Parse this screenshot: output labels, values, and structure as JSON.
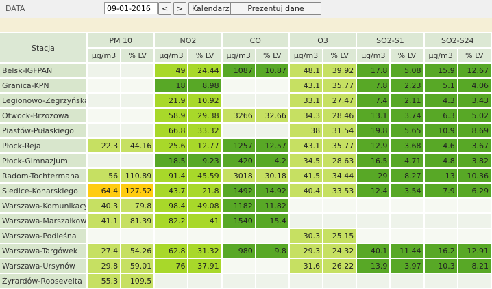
{
  "header": {
    "date_label": "DATA",
    "date": "09-01-2016",
    "prev": "<",
    "next": ">",
    "calendar": "Kalendarz",
    "present": "Prezentuj dane"
  },
  "table": {
    "station_header": "Stacja",
    "groups": [
      "PM 10",
      "NO2",
      "CO",
      "O3",
      "SO2-S1",
      "SO2-S24"
    ],
    "units": [
      "µg/m3",
      "% LV"
    ],
    "rows": [
      {
        "station": "Belsk-IGFPAN",
        "values": [
          null,
          null,
          49,
          24.44,
          1087,
          10.87,
          48.1,
          39.92,
          17.8,
          5.08,
          15.9,
          12.67
        ],
        "colors": [
          null,
          "#a8d82a",
          "#58a826",
          "#c6e062",
          "#58a826",
          "#58a826"
        ]
      },
      {
        "station": "Granica-KPN",
        "values": [
          null,
          null,
          18,
          8.98,
          null,
          null,
          43.1,
          35.77,
          7.8,
          2.23,
          5.1,
          4.06
        ],
        "colors": [
          null,
          "#58a826",
          null,
          "#c6e062",
          "#58a826",
          "#58a826"
        ]
      },
      {
        "station": "Legionowo-Zegrzyńska",
        "values": [
          null,
          null,
          21.9,
          10.92,
          null,
          null,
          33.1,
          27.47,
          7.4,
          2.11,
          4.3,
          3.43
        ],
        "colors": [
          null,
          "#a8d82a",
          null,
          "#c6e062",
          "#58a826",
          "#58a826"
        ]
      },
      {
        "station": "Otwock-Brzozowa",
        "values": [
          null,
          null,
          58.9,
          29.38,
          3266,
          32.66,
          34.3,
          28.46,
          13.1,
          3.74,
          6.3,
          5.02
        ],
        "colors": [
          null,
          "#a8d82a",
          "#c6e062",
          "#c6e062",
          "#58a826",
          "#58a826"
        ]
      },
      {
        "station": "Piastów-Pułaskiego",
        "values": [
          null,
          null,
          66.8,
          33.32,
          null,
          null,
          38,
          31.54,
          19.8,
          5.65,
          10.9,
          8.69
        ],
        "colors": [
          null,
          "#a8d82a",
          null,
          "#c6e062",
          "#58a826",
          "#58a826"
        ]
      },
      {
        "station": "Płock-Reja",
        "values": [
          22.3,
          44.16,
          25.6,
          12.77,
          1257,
          12.57,
          43.1,
          35.77,
          12.9,
          3.68,
          4.6,
          3.67
        ],
        "colors": [
          "#c6e062",
          "#a8d82a",
          "#58a826",
          "#c6e062",
          "#58a826",
          "#58a826"
        ]
      },
      {
        "station": "Płock-Gimnazjum",
        "values": [
          null,
          null,
          18.5,
          9.23,
          420,
          4.2,
          34.5,
          28.63,
          16.5,
          4.71,
          4.8,
          3.82
        ],
        "colors": [
          null,
          "#58a826",
          "#58a826",
          "#c6e062",
          "#58a826",
          "#58a826"
        ]
      },
      {
        "station": "Radom-Tochtermana",
        "values": [
          56,
          110.89,
          91.4,
          45.59,
          3018,
          30.18,
          41.5,
          34.44,
          29,
          8.27,
          13,
          10.36
        ],
        "colors": [
          "#c6e062",
          "#a8d82a",
          "#c6e062",
          "#c6e062",
          "#58a826",
          "#58a826"
        ]
      },
      {
        "station": "Siedlce-Konarskiego",
        "values": [
          64.4,
          127.52,
          43.7,
          21.8,
          1492,
          14.92,
          40.4,
          33.53,
          12.4,
          3.54,
          7.9,
          6.29
        ],
        "colors": [
          "#ffcc11",
          "#a8d82a",
          "#58a826",
          "#c6e062",
          "#58a826",
          "#58a826"
        ]
      },
      {
        "station": "Warszawa-Komunikacyjna",
        "values": [
          40.3,
          79.8,
          98.4,
          49.08,
          1182,
          11.82,
          null,
          null,
          null,
          null,
          null,
          null
        ],
        "colors": [
          "#c6e062",
          "#a8d82a",
          "#58a826",
          null,
          null,
          null
        ]
      },
      {
        "station": "Warszawa-Marszałkowska",
        "values": [
          41.1,
          81.39,
          82.2,
          41,
          1540,
          15.4,
          null,
          null,
          null,
          null,
          null,
          null
        ],
        "colors": [
          "#c6e062",
          "#a8d82a",
          "#58a826",
          null,
          null,
          null
        ]
      },
      {
        "station": "Warszawa-Podleśna",
        "values": [
          null,
          null,
          null,
          null,
          null,
          null,
          30.3,
          25.15,
          null,
          null,
          null,
          null
        ],
        "colors": [
          null,
          null,
          null,
          "#c6e062",
          null,
          null
        ]
      },
      {
        "station": "Warszawa-Targówek",
        "values": [
          27.4,
          54.26,
          62.8,
          31.32,
          980,
          9.8,
          29.3,
          24.32,
          40.1,
          11.44,
          16.2,
          12.91
        ],
        "colors": [
          "#c6e062",
          "#a8d82a",
          "#58a826",
          "#c6e062",
          "#58a826",
          "#58a826"
        ]
      },
      {
        "station": "Warszawa-Ursynów",
        "values": [
          29.8,
          59.01,
          76,
          37.91,
          null,
          null,
          31.6,
          26.22,
          13.9,
          3.97,
          10.3,
          8.21
        ],
        "colors": [
          "#c6e062",
          "#a8d82a",
          null,
          "#c6e062",
          "#58a826",
          "#58a826"
        ]
      },
      {
        "station": "Żyrardów-Roosevelta",
        "values": [
          55.3,
          109.5,
          null,
          null,
          null,
          null,
          null,
          null,
          null,
          null,
          null,
          null
        ],
        "colors": [
          "#c6e062",
          null,
          null,
          null,
          null,
          null
        ]
      }
    ]
  }
}
